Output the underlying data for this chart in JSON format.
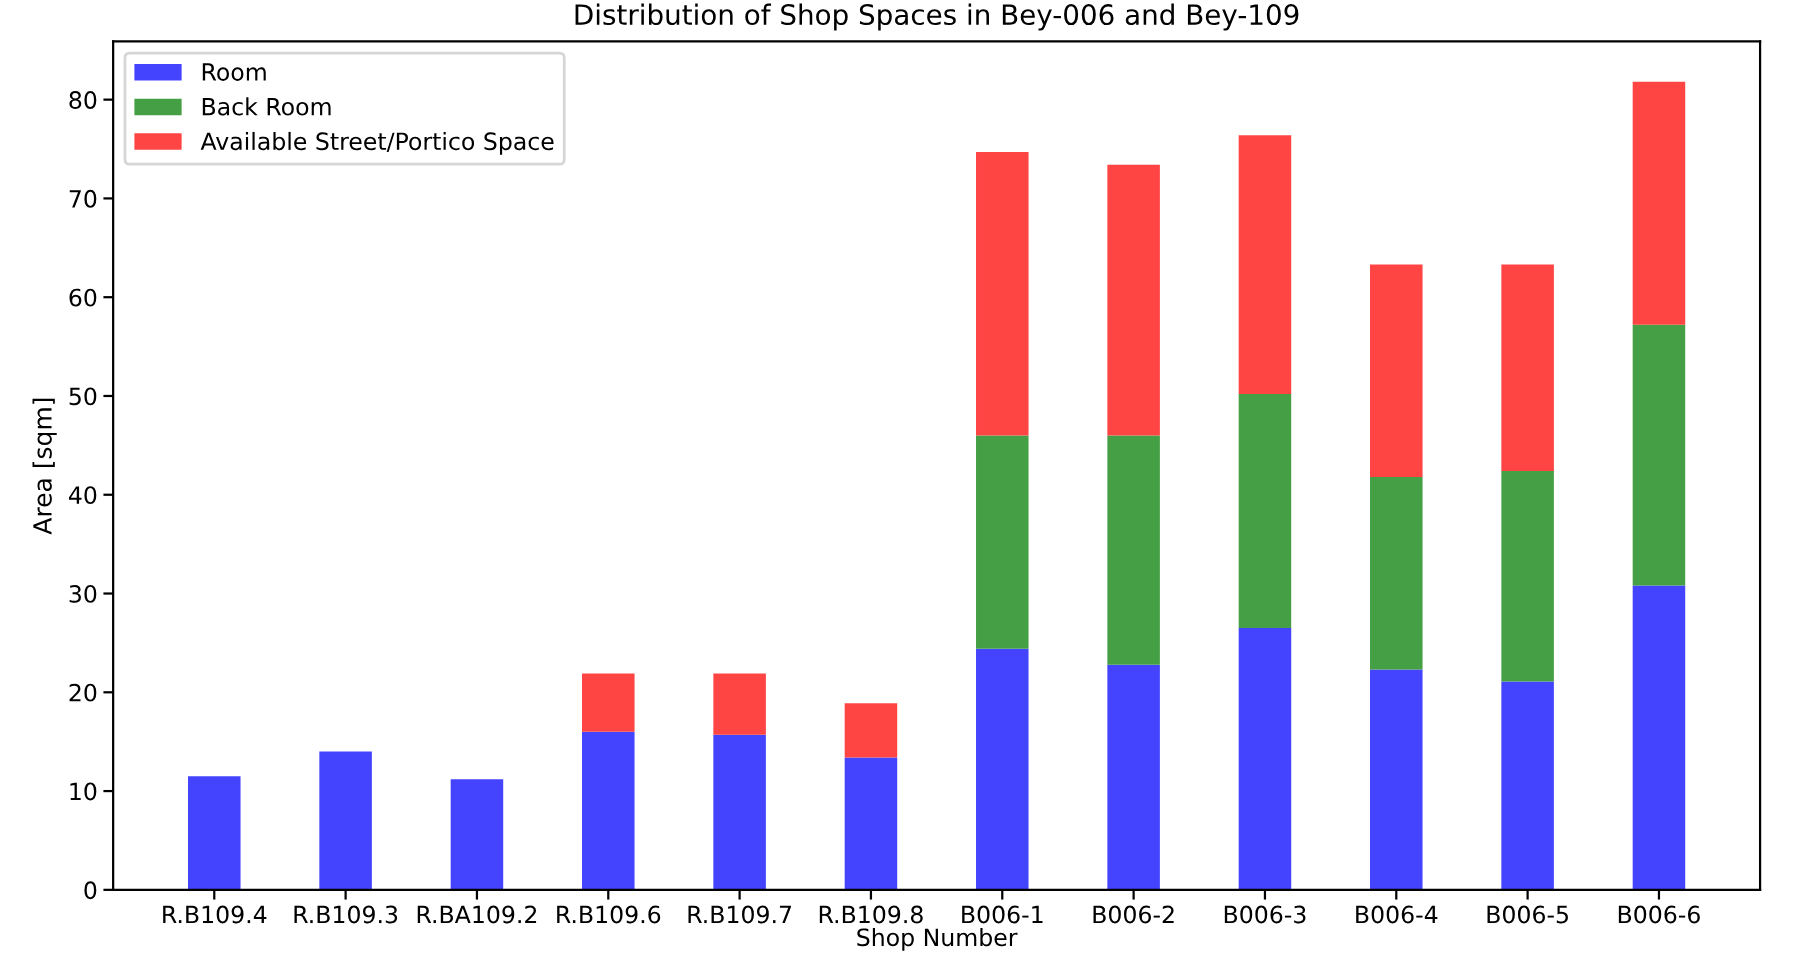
{
  "chart_data": {
    "type": "bar",
    "title": "Distribution of Shop Spaces in Bey-006 and Bey-109",
    "xlabel": "Shop Number",
    "ylabel": "Area [sqm]",
    "categories": [
      "R.B109.4",
      "R.B109.3",
      "R.BA109.2",
      "R.B109.6",
      "R.B109.7",
      "R.B109.8",
      "B006-1",
      "B006-2",
      "B006-3",
      "B006-4",
      "B006-5",
      "B006-6"
    ],
    "stacked": true,
    "series": [
      {
        "name": "Room",
        "color": "#4444ff",
        "values": [
          11.5,
          14.0,
          11.2,
          16.0,
          15.7,
          13.4,
          24.4,
          22.8,
          26.5,
          22.3,
          21.1,
          30.8
        ]
      },
      {
        "name": "Back Room",
        "color": "#45a045",
        "values": [
          null,
          null,
          null,
          null,
          null,
          null,
          21.6,
          23.2,
          23.7,
          19.5,
          21.3,
          26.4
        ]
      },
      {
        "name": "Available Street/Portico Space",
        "color": "#ff4444",
        "values": [
          null,
          null,
          null,
          5.9,
          6.2,
          5.5,
          28.7,
          27.4,
          26.2,
          21.5,
          20.9,
          24.6
        ]
      }
    ],
    "ylim": [
      0,
      85.9
    ],
    "yticks": [
      0,
      10,
      20,
      30,
      40,
      50,
      60,
      70,
      80
    ],
    "grid": false,
    "legend": "top left"
  }
}
